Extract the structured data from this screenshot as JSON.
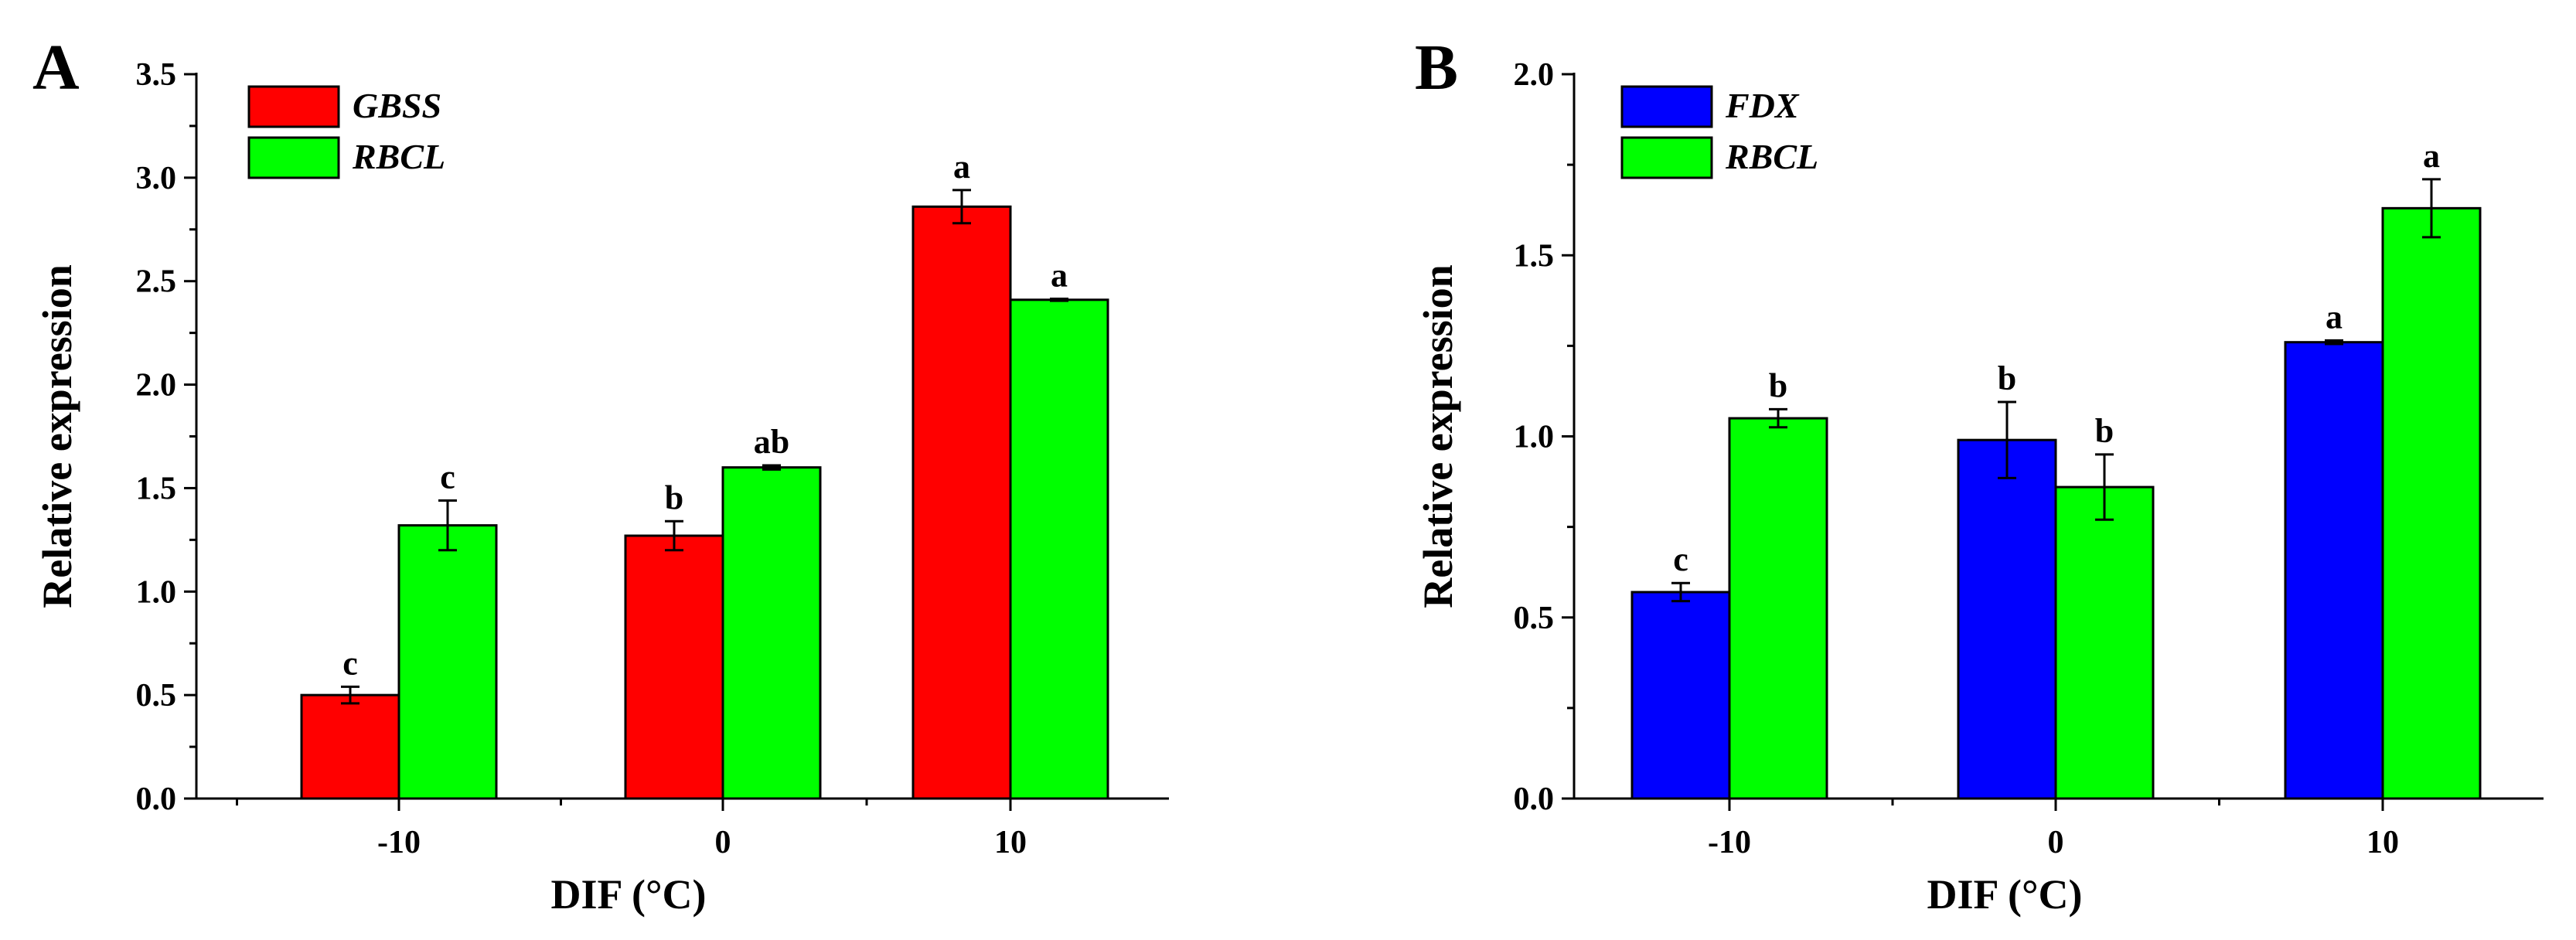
{
  "chart_data": [
    {
      "type": "bar",
      "panel": "A",
      "categories": [
        "-10",
        "0",
        "10"
      ],
      "xlabel": "DIF (°C)",
      "ylabel": "Relative expression",
      "ylim": [
        0,
        3.5
      ],
      "yticks": [
        "0.0",
        "0.5",
        "1.0",
        "1.5",
        "2.0",
        "2.5",
        "3.0",
        "3.5"
      ],
      "ytick_values": [
        0,
        0.5,
        1.0,
        1.5,
        2.0,
        2.5,
        3.0,
        3.5
      ],
      "legend_position": "top-left",
      "series": [
        {
          "name": "GBSS",
          "color": "#ff0000",
          "values": [
            0.5,
            1.27,
            2.86
          ],
          "errors": [
            0.04,
            0.07,
            0.08
          ],
          "sig_labels": [
            "c",
            "b",
            "a"
          ]
        },
        {
          "name": "RBCL",
          "color": "#00ff00",
          "values": [
            1.32,
            1.6,
            2.41
          ],
          "errors": [
            0.12,
            0.01,
            0.005
          ],
          "sig_labels": [
            "c",
            "ab",
            "a"
          ]
        }
      ]
    },
    {
      "type": "bar",
      "panel": "B",
      "categories": [
        "-10",
        "0",
        "10"
      ],
      "xlabel": "DIF (°C)",
      "ylabel": "Relative expression",
      "ylim": [
        0,
        2.0
      ],
      "yticks": [
        "0.0",
        "0.5",
        "1.0",
        "1.5",
        "2.0"
      ],
      "ytick_values": [
        0,
        0.5,
        1.0,
        1.5,
        2.0
      ],
      "legend_position": "top-left",
      "series": [
        {
          "name": "FDX",
          "color": "#0000ff",
          "values": [
            0.57,
            0.99,
            1.26
          ],
          "errors": [
            0.025,
            0.105,
            0.005
          ],
          "sig_labels": [
            "c",
            "b",
            "a"
          ]
        },
        {
          "name": "RBCL",
          "color": "#00ff00",
          "values": [
            1.05,
            0.86,
            1.63
          ],
          "errors": [
            0.025,
            0.09,
            0.08
          ],
          "sig_labels": [
            "b",
            "b",
            "a"
          ]
        }
      ]
    }
  ]
}
